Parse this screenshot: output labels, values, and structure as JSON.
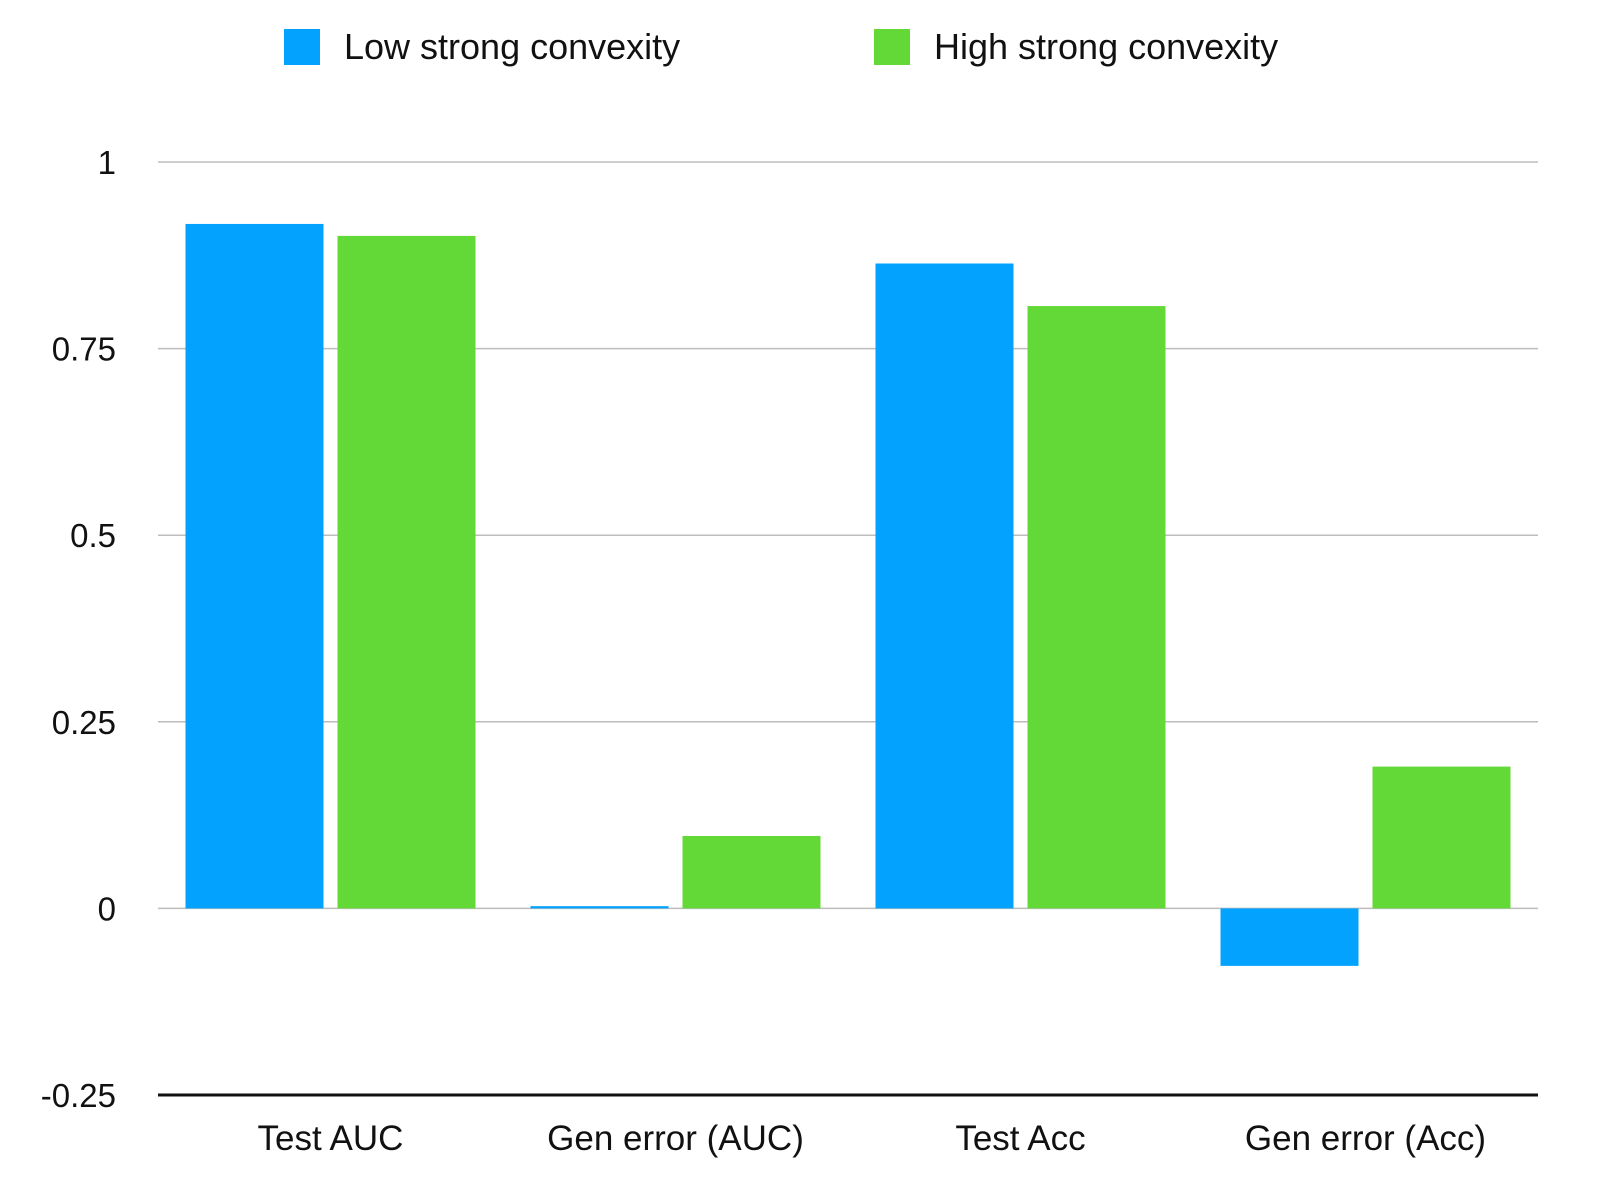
{
  "chart_data": {
    "type": "bar",
    "title": "",
    "xlabel": "",
    "ylabel": "",
    "categories": [
      "Test AUC",
      "Gen error (AUC)",
      "Test Acc",
      "Gen error (Acc)"
    ],
    "series": [
      {
        "name": "Low strong convexity",
        "color": "#03a2fe",
        "values": [
          0.917,
          0.003,
          0.864,
          -0.077
        ]
      },
      {
        "name": "High strong convexity",
        "color": "#62d936",
        "values": [
          0.901,
          0.097,
          0.807,
          0.19
        ]
      }
    ],
    "ylim": [
      -0.25,
      1
    ],
    "yticks": [
      1,
      0.75,
      0.5,
      0.25,
      0,
      -0.25
    ],
    "ytick_labels": [
      "1",
      "0.75",
      "0.5",
      "0.25",
      "0",
      "-0.25"
    ],
    "grid": true,
    "legend_position": "top"
  }
}
